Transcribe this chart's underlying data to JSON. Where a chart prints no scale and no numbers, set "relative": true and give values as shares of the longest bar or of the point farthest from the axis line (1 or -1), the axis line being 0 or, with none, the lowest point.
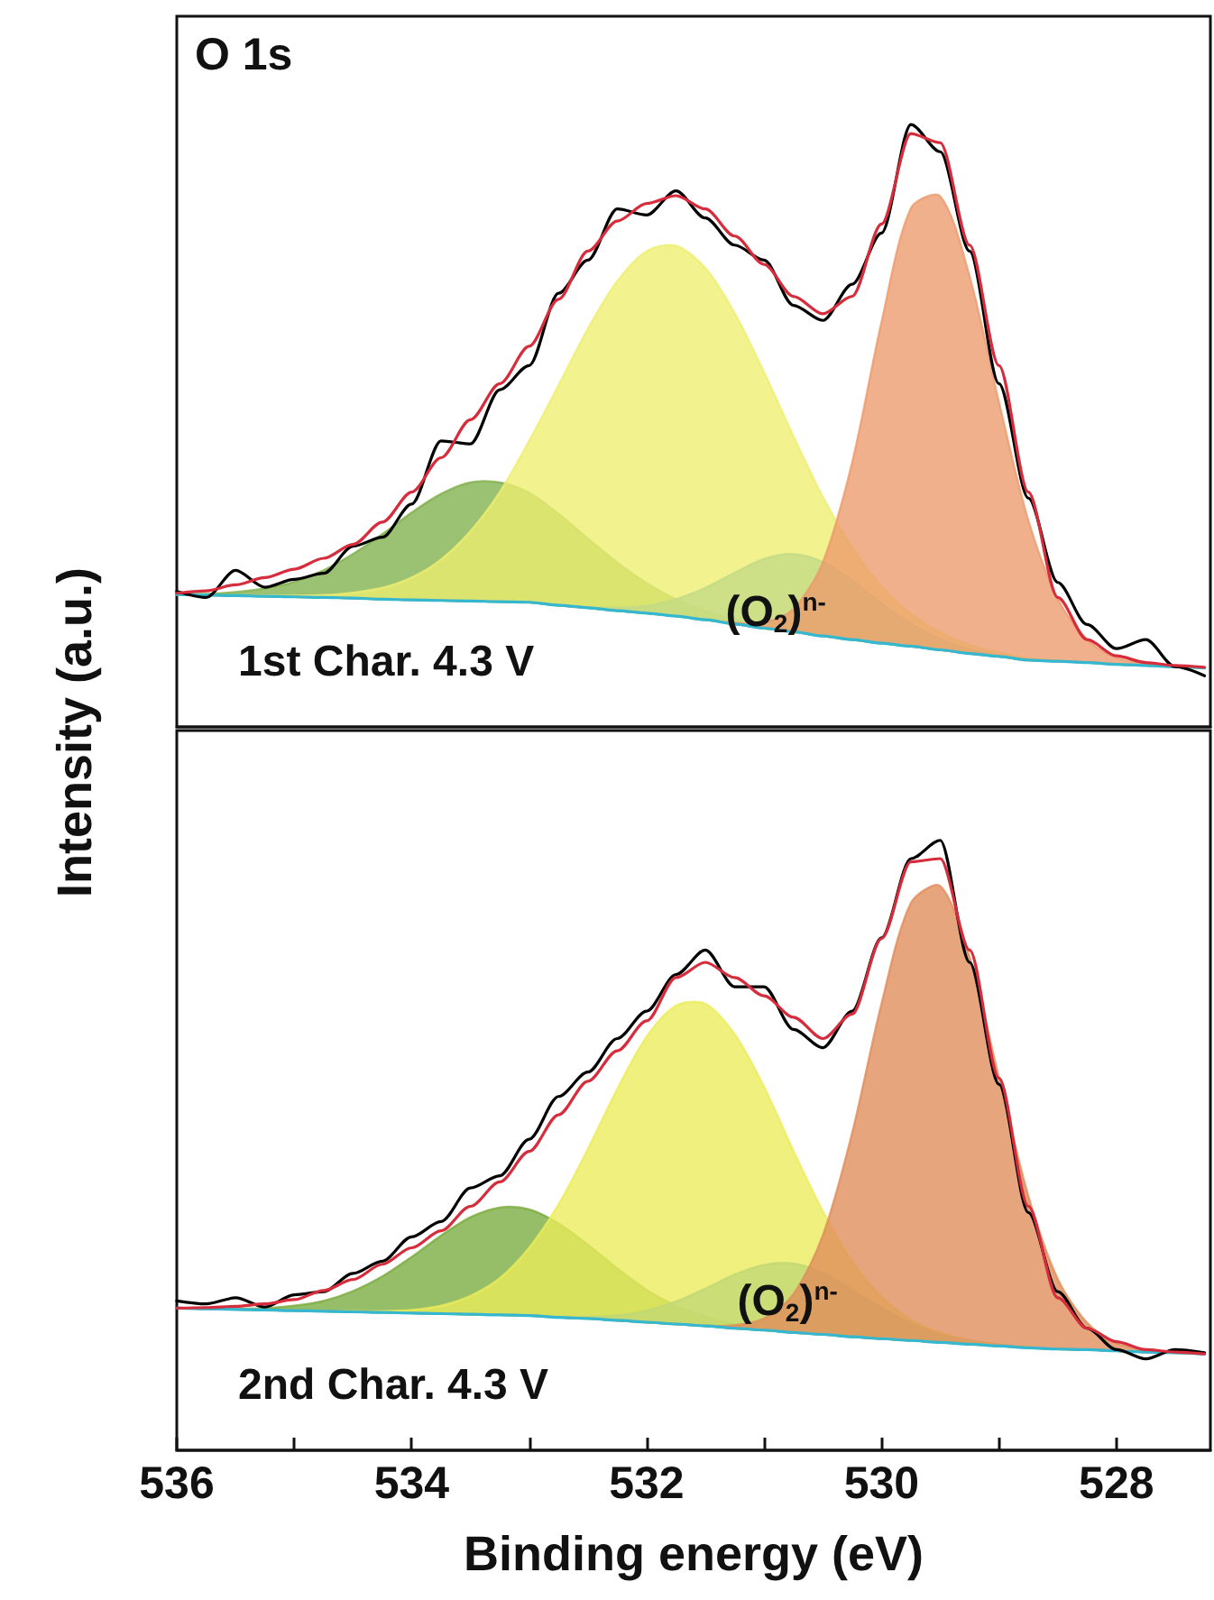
{
  "chart_data": [
    {
      "type": "line",
      "relative": true,
      "title": "O 1s",
      "ylabel": "Intensity (a.u.)",
      "tick_labels": false,
      "xlim": [
        536,
        527.2
      ],
      "annotations": [
        "1st Char. 4.3 V",
        {
          "text": "(O$_{2}$)$^{n-}$",
          "x": 530.9,
          "y": 0.19
        }
      ],
      "x": [
        536,
        535.75,
        535.5,
        535.25,
        535,
        534.75,
        534.5,
        534.25,
        534,
        533.75,
        533.5,
        533.25,
        533,
        532.75,
        532.5,
        532.25,
        532,
        531.75,
        531.5,
        531.25,
        531,
        530.75,
        530.5,
        530.25,
        530,
        529.75,
        529.5,
        529.25,
        529,
        528.75,
        528.5,
        528.25,
        528,
        527.75,
        527.5,
        527.25
      ],
      "series": [
        {
          "type": "area",
          "color": "#7fb04a",
          "values": [
            0.221,
            0.221,
            0.224,
            0.23,
            0.241,
            0.26,
            0.287,
            0.32,
            0.356,
            0.387,
            0.406,
            0.406,
            0.389,
            0.354,
            0.313,
            0.273,
            0.239,
            0.212,
            0.193,
            0.178,
            0.167,
            0.159,
            0.151,
            0.145,
            0.139,
            0.134,
            0.128,
            0.122,
            0.117,
            0.111,
            0.109,
            0.107,
            0.104,
            0.102,
            0.1,
            0.098
          ]
        },
        {
          "type": "area",
          "color": "#2a8fd0",
          "values": [
            0.22,
            0.219,
            0.218,
            0.217,
            0.216,
            0.215,
            0.214,
            0.212,
            0.211,
            0.21,
            0.209,
            0.208,
            0.207,
            0.202,
            0.199,
            0.198,
            0.201,
            0.212,
            0.231,
            0.256,
            0.279,
            0.287,
            0.274,
            0.243,
            0.205,
            0.171,
            0.146,
            0.129,
            0.119,
            0.111,
            0.109,
            0.107,
            0.104,
            0.102,
            0.1,
            0.098
          ]
        },
        {
          "type": "area",
          "color": "#eeee70",
          "values": [
            0.22,
            0.219,
            0.218,
            0.218,
            0.218,
            0.219,
            0.223,
            0.231,
            0.248,
            0.278,
            0.325,
            0.39,
            0.475,
            0.567,
            0.661,
            0.74,
            0.79,
            0.799,
            0.762,
            0.687,
            0.589,
            0.483,
            0.382,
            0.298,
            0.234,
            0.188,
            0.157,
            0.136,
            0.124,
            0.114,
            0.11,
            0.107,
            0.104,
            0.102,
            0.1,
            0.098
          ]
        },
        {
          "type": "area",
          "color": "#ec9a6c",
          "values": [
            0.22,
            0.219,
            0.218,
            0.217,
            0.216,
            0.215,
            0.214,
            0.212,
            0.211,
            0.21,
            0.209,
            0.208,
            0.207,
            0.202,
            0.198,
            0.193,
            0.189,
            0.184,
            0.178,
            0.173,
            0.173,
            0.196,
            0.273,
            0.439,
            0.672,
            0.861,
            0.881,
            0.748,
            0.539,
            0.343,
            0.213,
            0.145,
            0.115,
            0.105,
            0.101,
            0.098
          ]
        },
        {
          "type": "line",
          "color": "#35b8cf",
          "values": [
            0.22,
            0.219,
            0.218,
            0.217,
            0.216,
            0.215,
            0.214,
            0.212,
            0.211,
            0.21,
            0.209,
            0.208,
            0.207,
            0.202,
            0.198,
            0.193,
            0.189,
            0.184,
            0.178,
            0.171,
            0.164,
            0.158,
            0.151,
            0.145,
            0.139,
            0.134,
            0.128,
            0.122,
            0.117,
            0.111,
            0.109,
            0.107,
            0.104,
            0.102,
            0.1,
            0.098
          ]
        },
        {
          "type": "line",
          "color": "#000000",
          "values": [
            0.225,
            0.215,
            0.26,
            0.232,
            0.245,
            0.255,
            0.3,
            0.315,
            0.37,
            0.475,
            0.47,
            0.56,
            0.6,
            0.72,
            0.775,
            0.86,
            0.85,
            0.89,
            0.845,
            0.8,
            0.775,
            0.7,
            0.675,
            0.735,
            0.82,
            1.0,
            0.955,
            0.79,
            0.57,
            0.38,
            0.24,
            0.17,
            0.13,
            0.145,
            0.1,
            0.085
          ]
        },
        {
          "type": "line",
          "color": "#d62c3c",
          "values": [
            0.222,
            0.226,
            0.236,
            0.248,
            0.262,
            0.28,
            0.303,
            0.34,
            0.39,
            0.447,
            0.51,
            0.57,
            0.632,
            0.71,
            0.79,
            0.84,
            0.869,
            0.882,
            0.86,
            0.815,
            0.768,
            0.715,
            0.686,
            0.715,
            0.835,
            0.985,
            0.97,
            0.8,
            0.6,
            0.39,
            0.215,
            0.145,
            0.118,
            0.107,
            0.102,
            0.099
          ]
        }
      ]
    },
    {
      "type": "line",
      "relative": true,
      "xlabel": "Binding energy (eV)",
      "tick_labels": "x",
      "xlim": [
        536,
        527.2
      ],
      "xticks": [
        536,
        {
          "value": 535,
          "label": null
        },
        534,
        {
          "value": 533,
          "label": null
        },
        532,
        {
          "value": 531,
          "label": null
        },
        530,
        {
          "value": 529,
          "label": null
        },
        528
      ],
      "annotations": [
        "2nd Char. 4.3 V",
        {
          "text": "(O$_{2}$)$^{n-}$",
          "x": 530.8,
          "y": 0.244
        }
      ],
      "x": [
        536,
        535.75,
        535.5,
        535.25,
        535,
        534.75,
        534.5,
        534.25,
        534,
        533.75,
        533.5,
        533.25,
        533,
        532.75,
        532.5,
        532.25,
        532,
        531.75,
        531.5,
        531.25,
        531,
        530.75,
        530.5,
        530.25,
        530,
        529.75,
        529.5,
        529.25,
        529,
        528.75,
        528.5,
        528.25,
        528,
        527.75,
        527.5,
        527.25
      ],
      "series": [
        {
          "type": "area",
          "color": "#78aa3c",
          "values": [
            0.233,
            0.232,
            0.232,
            0.233,
            0.237,
            0.245,
            0.261,
            0.285,
            0.317,
            0.352,
            0.382,
            0.398,
            0.395,
            0.372,
            0.337,
            0.298,
            0.263,
            0.237,
            0.219,
            0.207,
            0.2,
            0.194,
            0.19,
            0.186,
            0.183,
            0.18,
            0.177,
            0.174,
            0.171,
            0.168,
            0.166,
            0.165,
            0.163,
            0.161,
            0.16,
            0.158
          ]
        },
        {
          "type": "area",
          "color": "#2a8fd0",
          "values": [
            0.233,
            0.232,
            0.231,
            0.23,
            0.229,
            0.228,
            0.227,
            0.226,
            0.225,
            0.224,
            0.223,
            0.222,
            0.221,
            0.219,
            0.219,
            0.221,
            0.229,
            0.244,
            0.265,
            0.288,
            0.304,
            0.306,
            0.291,
            0.263,
            0.234,
            0.208,
            0.191,
            0.18,
            0.173,
            0.168,
            0.166,
            0.165,
            0.163,
            0.161,
            0.16,
            0.158
          ]
        },
        {
          "type": "area",
          "color": "#ecec5a",
          "values": [
            0.233,
            0.232,
            0.231,
            0.23,
            0.229,
            0.228,
            0.228,
            0.228,
            0.23,
            0.237,
            0.253,
            0.282,
            0.332,
            0.403,
            0.494,
            0.592,
            0.678,
            0.729,
            0.732,
            0.682,
            0.596,
            0.491,
            0.392,
            0.31,
            0.252,
            0.214,
            0.193,
            0.18,
            0.173,
            0.169,
            0.166,
            0.165,
            0.163,
            0.161,
            0.16,
            0.158
          ]
        },
        {
          "type": "area",
          "color": "#e08c5a",
          "values": [
            0.233,
            0.232,
            0.231,
            0.23,
            0.229,
            0.228,
            0.227,
            0.226,
            0.225,
            0.224,
            0.223,
            0.222,
            0.221,
            0.218,
            0.216,
            0.213,
            0.21,
            0.207,
            0.204,
            0.205,
            0.216,
            0.256,
            0.352,
            0.52,
            0.732,
            0.897,
            0.925,
            0.808,
            0.61,
            0.417,
            0.281,
            0.209,
            0.176,
            0.164,
            0.161,
            0.158
          ]
        },
        {
          "type": "line",
          "color": "#35b8cf",
          "values": [
            0.233,
            0.232,
            0.231,
            0.23,
            0.229,
            0.228,
            0.227,
            0.226,
            0.225,
            0.224,
            0.223,
            0.222,
            0.221,
            0.218,
            0.216,
            0.213,
            0.21,
            0.207,
            0.204,
            0.2,
            0.197,
            0.193,
            0.19,
            0.186,
            0.183,
            0.18,
            0.177,
            0.174,
            0.171,
            0.168,
            0.166,
            0.165,
            0.163,
            0.161,
            0.16,
            0.158
          ]
        },
        {
          "type": "line",
          "color": "#000000",
          "values": [
            0.245,
            0.24,
            0.25,
            0.235,
            0.255,
            0.26,
            0.29,
            0.31,
            0.35,
            0.375,
            0.43,
            0.45,
            0.51,
            0.58,
            0.62,
            0.675,
            0.72,
            0.78,
            0.82,
            0.76,
            0.76,
            0.69,
            0.66,
            0.72,
            0.84,
            0.97,
            1.0,
            0.8,
            0.6,
            0.39,
            0.26,
            0.2,
            0.165,
            0.15,
            0.165,
            0.16
          ]
        },
        {
          "type": "line",
          "color": "#d62c3c",
          "values": [
            0.233,
            0.234,
            0.236,
            0.24,
            0.247,
            0.262,
            0.28,
            0.305,
            0.332,
            0.36,
            0.4,
            0.44,
            0.49,
            0.55,
            0.605,
            0.655,
            0.704,
            0.775,
            0.8,
            0.775,
            0.745,
            0.71,
            0.675,
            0.715,
            0.839,
            0.965,
            0.97,
            0.82,
            0.61,
            0.4,
            0.25,
            0.2,
            0.178,
            0.165,
            0.161,
            0.158
          ]
        }
      ]
    }
  ]
}
